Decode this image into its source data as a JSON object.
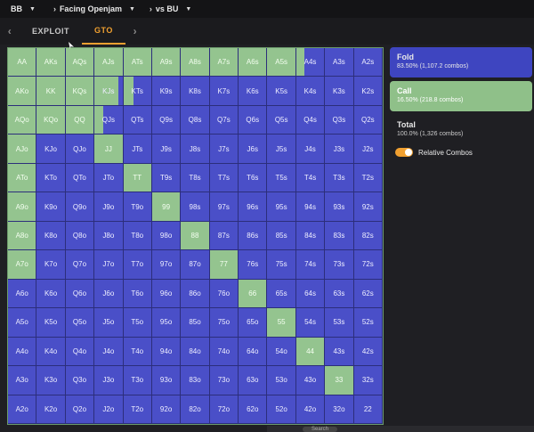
{
  "breadcrumbs": {
    "position": "BB",
    "spot": "Facing Openjam",
    "vs": "vs BU"
  },
  "tabs": {
    "exploit": "EXPLOIT",
    "gto": "GTO"
  },
  "actions": {
    "fold": {
      "label": "Fold",
      "stat": "83.50% (1,107.2 combos)",
      "color": "#3e45c0"
    },
    "call": {
      "label": "Call",
      "stat": "16.50% (218.8 combos)",
      "color": "#8fc089"
    },
    "total": {
      "label": "Total",
      "stat": "100.0% (1,326 combos)"
    },
    "relative_combos_label": "Relative Combos"
  },
  "taskbar": {
    "search": "Search"
  },
  "ranks": [
    "A",
    "K",
    "Q",
    "J",
    "T",
    "9",
    "8",
    "7",
    "6",
    "5",
    "4",
    "3",
    "2"
  ],
  "call_freq": [
    [
      1,
      1,
      1,
      1,
      1,
      1,
      1,
      1,
      1,
      1,
      0.3,
      0,
      0
    ],
    [
      1,
      1,
      1,
      0.85,
      0.35,
      0,
      0,
      0,
      0,
      0,
      0,
      0,
      0
    ],
    [
      1,
      1,
      1,
      0.3,
      0,
      0,
      0,
      0,
      0,
      0,
      0,
      0,
      0
    ],
    [
      1,
      0,
      0,
      1,
      0,
      0,
      0,
      0,
      0,
      0,
      0,
      0,
      0
    ],
    [
      1,
      0,
      0,
      0,
      1,
      0,
      0,
      0,
      0,
      0,
      0,
      0,
      0
    ],
    [
      1,
      0,
      0,
      0,
      0,
      1,
      0,
      0,
      0,
      0,
      0,
      0,
      0
    ],
    [
      1,
      0,
      0,
      0,
      0,
      0,
      1,
      0,
      0,
      0,
      0,
      0,
      0
    ],
    [
      1,
      0,
      0,
      0,
      0,
      0,
      0,
      1,
      0,
      0,
      0,
      0,
      0
    ],
    [
      0,
      0,
      0,
      0,
      0,
      0,
      0,
      0,
      1,
      0,
      0,
      0,
      0
    ],
    [
      0,
      0,
      0,
      0,
      0,
      0,
      0,
      0,
      0,
      1,
      0,
      0,
      0
    ],
    [
      0,
      0,
      0,
      0,
      0,
      0,
      0,
      0,
      0,
      0,
      1,
      0,
      0
    ],
    [
      0,
      0,
      0,
      0,
      0,
      0,
      0,
      0,
      0,
      0,
      0,
      1,
      0
    ],
    [
      0,
      0,
      0,
      0,
      0,
      0,
      0,
      0,
      0,
      0,
      0,
      0,
      0
    ]
  ]
}
